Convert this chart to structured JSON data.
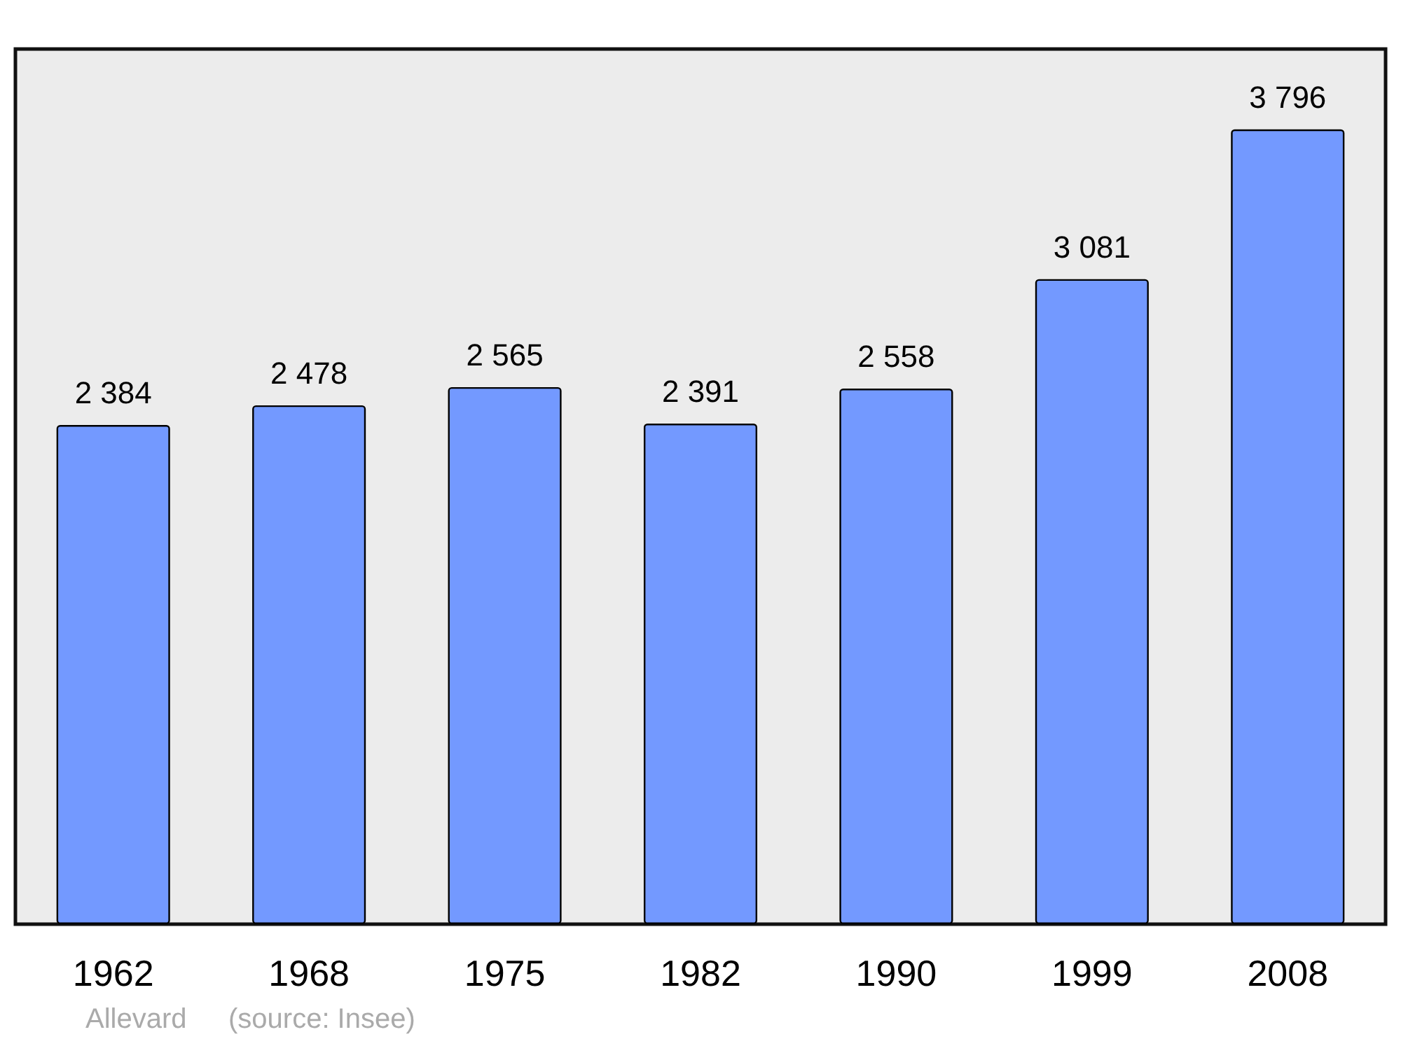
{
  "chart_data": {
    "type": "bar",
    "categories": [
      "1962",
      "1968",
      "1975",
      "1982",
      "1990",
      "1999",
      "2008"
    ],
    "values": [
      2384,
      2478,
      2565,
      2391,
      2558,
      3081,
      3796
    ],
    "value_labels": [
      "2 384",
      "2 478",
      "2 565",
      "2 391",
      "2 558",
      "3 081",
      "3 796"
    ],
    "color": "#7399ff",
    "ylim": [
      0,
      4180
    ],
    "tick_labels": "x",
    "grid": false,
    "annotations": [
      "Allevard",
      "(source: Insee)"
    ]
  }
}
